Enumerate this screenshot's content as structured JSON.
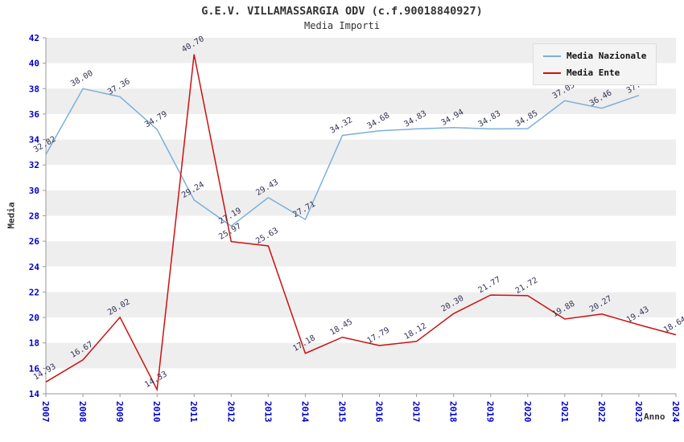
{
  "chart_data": {
    "type": "line",
    "title": "G.E.V. VILLAMASSARGIA ODV (c.f.90018840927)",
    "subtitle": "Media Importi",
    "xlabel": "Anno",
    "ylabel": "Media",
    "x": [
      2007,
      2008,
      2009,
      2010,
      2011,
      2012,
      2013,
      2014,
      2015,
      2016,
      2017,
      2018,
      2019,
      2020,
      2021,
      2022,
      2023,
      2024
    ],
    "series": [
      {
        "name": "Media Nazionale",
        "color": "#7cb0d8",
        "values": [
          32.82,
          38.0,
          37.36,
          34.79,
          29.24,
          27.19,
          29.43,
          27.71,
          34.32,
          34.68,
          34.83,
          34.94,
          34.83,
          34.85,
          37.05,
          36.46,
          37.47,
          null
        ]
      },
      {
        "name": "Media Ente",
        "color": "#cc1111",
        "values": [
          14.93,
          16.67,
          20.02,
          14.33,
          40.7,
          25.97,
          25.63,
          17.18,
          18.45,
          17.79,
          18.12,
          20.3,
          21.77,
          21.72,
          19.88,
          20.27,
          19.43,
          18.64
        ]
      }
    ],
    "ylim": [
      14,
      42
    ],
    "ytick_step": 2,
    "grid": "horizontal-bands",
    "legend_position": "top-right",
    "band_color": "#eeeeee",
    "tick_label_color": "#0000cc",
    "point_label_color": "#333355",
    "axis_color": "#999999"
  }
}
